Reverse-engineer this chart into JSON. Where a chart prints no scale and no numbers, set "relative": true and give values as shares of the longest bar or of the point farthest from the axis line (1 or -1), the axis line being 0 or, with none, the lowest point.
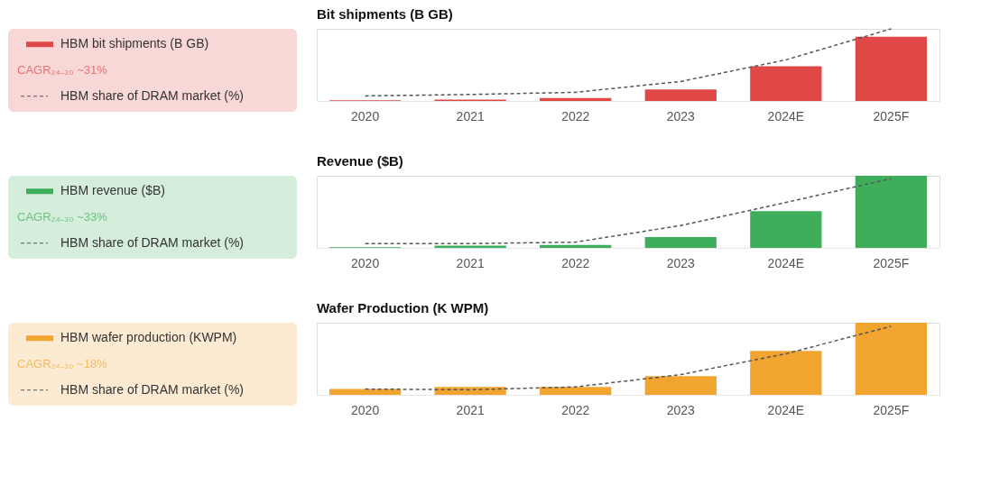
{
  "chart_data": [
    {
      "type": "bar",
      "title": "Bit shipments (B GB)",
      "categories": [
        "2020",
        "2021",
        "2022",
        "2023",
        "2024E",
        "2025F"
      ],
      "relative": true,
      "legend": "left",
      "marker": "none",
      "annotations": [
        "CAGR₂₄₋₃₀ ~31%"
      ],
      "series": [
        {
          "name": "HBM bit shipments (B GB)",
          "color": "#e04848",
          "values": [
            0.01,
            0.02,
            0.04,
            0.16,
            0.48,
            0.89
          ]
        },
        {
          "type": "line",
          "line_style": "dashed",
          "name": "HBM share of DRAM market (%)",
          "color": "#555555",
          "values": [
            0.07,
            0.09,
            0.12,
            0.27,
            0.57,
            1.0
          ]
        }
      ]
    },
    {
      "type": "bar",
      "title": "Revenue ($B)",
      "categories": [
        "2020",
        "2021",
        "2022",
        "2023",
        "2024E",
        "2025F"
      ],
      "relative": true,
      "legend": "left",
      "marker": "none",
      "annotations": [
        "CAGR₂₄₋₃₀ ~33%"
      ],
      "series": [
        {
          "name": "HBM revenue ($B)",
          "color": "#3fae5a",
          "values": [
            0.01,
            0.03,
            0.04,
            0.15,
            0.51,
            1.0
          ]
        },
        {
          "type": "line",
          "line_style": "dashed",
          "name": "HBM share of DRAM market (%)",
          "color": "#555555",
          "values": [
            0.06,
            0.06,
            0.08,
            0.31,
            0.63,
            0.96
          ]
        }
      ]
    },
    {
      "type": "bar",
      "title": "Wafer Production (K WPM)",
      "categories": [
        "2020",
        "2021",
        "2022",
        "2023",
        "2024E",
        "2025F"
      ],
      "relative": true,
      "legend": "left",
      "marker": "none",
      "annotations": [
        "CAGR₂₄₋₃₀ ~18%"
      ],
      "series": [
        {
          "name": "HBM wafer production (KWPM)",
          "color": "#f2a431",
          "values": [
            0.08,
            0.11,
            0.11,
            0.26,
            0.61,
            1.0
          ]
        },
        {
          "type": "line",
          "line_style": "dashed",
          "name": "HBM share of DRAM market (%)",
          "color": "#555555",
          "values": [
            0.08,
            0.07,
            0.11,
            0.28,
            0.57,
            0.95
          ]
        }
      ]
    }
  ]
}
